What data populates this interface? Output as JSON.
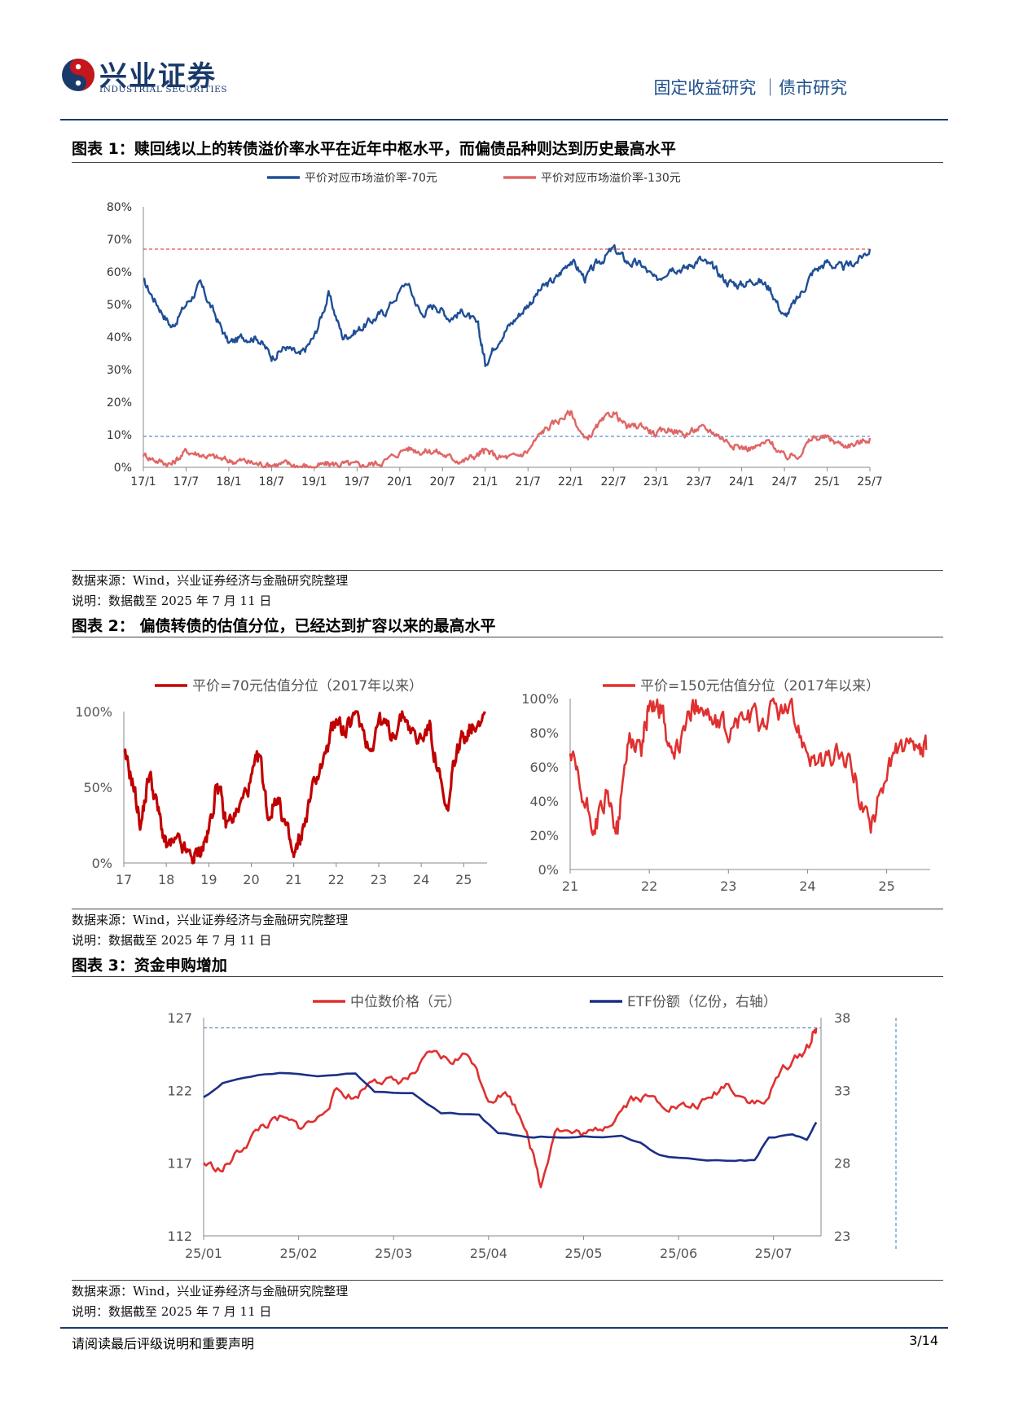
{
  "header": {
    "brand_cn": "兴业证券",
    "brand_en": "INDUSTRIAL SECURITIES",
    "section": "固定收益研究 ｜债市研究",
    "colors": {
      "brand": "#1a3a6b",
      "logo_red": "#c4161c"
    }
  },
  "figure1": {
    "title": "图表 1：赎回线以上的转债溢价率水平在近年中枢水平，而偏债品种则达到历史最高水平",
    "source": "数据来源：Wind，兴业证券经济与金融研究院整理",
    "note": "说明：数据截至 2025 年 7 月 11 日"
  },
  "figure2": {
    "title": "图表 2： 偏债转债的估值分位，已经达到扩容以来的最高水平",
    "source": "数据来源：Wind，兴业证券经济与金融研究院整理",
    "note": "说明：数据截至 2025 年 7 月 11 日"
  },
  "figure3": {
    "title": "图表 3：资金申购增加",
    "source": "数据来源：Wind，兴业证券经济与金融研究院整理",
    "note": "说明：数据截至 2025 年 7 月 11 日"
  },
  "footer": {
    "disclaimer": "请阅读最后评级说明和重要声明",
    "page": "3/14"
  },
  "chart_data": [
    {
      "type": "line",
      "yunit": "%",
      "ylim": [
        0,
        80
      ],
      "yticks": [
        "0%",
        "10%",
        "20%",
        "30%",
        "40%",
        "50%",
        "60%",
        "70%",
        "80%"
      ],
      "x_ticks": [
        "17/1",
        "17/7",
        "18/1",
        "18/7",
        "19/1",
        "19/7",
        "20/1",
        "20/7",
        "21/1",
        "21/7",
        "22/1",
        "22/7",
        "23/1",
        "23/7",
        "24/1",
        "24/7",
        "25/1",
        "25/7"
      ],
      "legend": "top-center",
      "reference_lines": [
        {
          "value": 67,
          "color": "#d9534f"
        },
        {
          "value": 9.5,
          "color": "#5b8fc9"
        }
      ],
      "series": [
        {
          "name": "平价对应市场溢价率-70元",
          "color": "#1f4e96",
          "points": [
            [
              "17/1",
              57
            ],
            [
              "17/3",
              50
            ],
            [
              "17/5",
              43
            ],
            [
              "17/7",
              50
            ],
            [
              "17/9",
              56
            ],
            [
              "17/11",
              47
            ],
            [
              "18/1",
              38
            ],
            [
              "18/3",
              40
            ],
            [
              "18/5",
              40
            ],
            [
              "18/7",
              34
            ],
            [
              "18/9",
              37
            ],
            [
              "18/11",
              34
            ],
            [
              "19/1",
              40
            ],
            [
              "19/3",
              53
            ],
            [
              "19/5",
              40
            ],
            [
              "19/7",
              42
            ],
            [
              "19/9",
              45
            ],
            [
              "19/11",
              48
            ],
            [
              "20/2",
              57
            ],
            [
              "20/4",
              47
            ],
            [
              "20/6",
              50
            ],
            [
              "20/8",
              46
            ],
            [
              "20/10",
              48
            ],
            [
              "20/12",
              43
            ],
            [
              "21/1",
              32
            ],
            [
              "21/3",
              40
            ],
            [
              "21/5",
              45
            ],
            [
              "21/7",
              50
            ],
            [
              "21/9",
              55
            ],
            [
              "21/11",
              58
            ],
            [
              "22/1",
              64
            ],
            [
              "22/3",
              58
            ],
            [
              "22/5",
              63
            ],
            [
              "22/7",
              67
            ],
            [
              "22/9",
              63
            ],
            [
              "22/11",
              62
            ],
            [
              "23/1",
              57
            ],
            [
              "23/3",
              62
            ],
            [
              "23/5",
              61
            ],
            [
              "23/7",
              64
            ],
            [
              "23/9",
              61
            ],
            [
              "23/11",
              57
            ],
            [
              "24/1",
              56
            ],
            [
              "24/3",
              58
            ],
            [
              "24/5",
              55
            ],
            [
              "24/7",
              46
            ],
            [
              "24/9",
              52
            ],
            [
              "24/11",
              60
            ],
            [
              "25/1",
              63
            ],
            [
              "25/3",
              61
            ],
            [
              "25/5",
              63
            ],
            [
              "25/7",
              67
            ]
          ]
        },
        {
          "name": "平价对应市场溢价率-130元",
          "color": "#e06666",
          "points": [
            [
              "17/1",
              4
            ],
            [
              "17/3",
              2
            ],
            [
              "17/5",
              1
            ],
            [
              "17/7",
              5
            ],
            [
              "17/9",
              4
            ],
            [
              "17/11",
              3
            ],
            [
              "18/1",
              2
            ],
            [
              "18/3",
              2
            ],
            [
              "18/5",
              1
            ],
            [
              "18/7",
              1
            ],
            [
              "18/9",
              1
            ],
            [
              "18/11",
              0.5
            ],
            [
              "19/1",
              0
            ],
            [
              "19/3",
              1
            ],
            [
              "19/5",
              1
            ],
            [
              "19/7",
              0.5
            ],
            [
              "19/9",
              1
            ],
            [
              "19/11",
              2
            ],
            [
              "20/2",
              6
            ],
            [
              "20/4",
              5
            ],
            [
              "20/6",
              5
            ],
            [
              "20/8",
              3
            ],
            [
              "20/10",
              2
            ],
            [
              "20/12",
              4
            ],
            [
              "21/1",
              5
            ],
            [
              "21/3",
              3
            ],
            [
              "21/5",
              3
            ],
            [
              "21/7",
              5
            ],
            [
              "21/9",
              11
            ],
            [
              "21/11",
              14
            ],
            [
              "22/1",
              17
            ],
            [
              "22/3",
              8
            ],
            [
              "22/5",
              13
            ],
            [
              "22/7",
              17
            ],
            [
              "22/9",
              12
            ],
            [
              "22/11",
              13
            ],
            [
              "23/1",
              10
            ],
            [
              "23/3",
              12
            ],
            [
              "23/5",
              10
            ],
            [
              "23/7",
              12
            ],
            [
              "23/9",
              11
            ],
            [
              "23/11",
              8
            ],
            [
              "24/1",
              6
            ],
            [
              "24/3",
              6
            ],
            [
              "24/5",
              8
            ],
            [
              "24/7",
              3
            ],
            [
              "24/9",
              4
            ],
            [
              "24/11",
              9
            ],
            [
              "25/1",
              9
            ],
            [
              "25/3",
              7
            ],
            [
              "25/5",
              7
            ],
            [
              "25/7",
              9
            ]
          ]
        }
      ]
    },
    {
      "type": "line",
      "ylim": [
        0,
        100
      ],
      "yticks": [
        "0%",
        "50%",
        "100%"
      ],
      "x_ticks": [
        "17",
        "18",
        "19",
        "20",
        "21",
        "22",
        "23",
        "24",
        "25"
      ],
      "legend": "top-center",
      "series": [
        {
          "name": "平价=70元估值分位（2017年以来）",
          "color": "#c00000",
          "points": [
            [
              2017.0,
              70
            ],
            [
              2017.2,
              55
            ],
            [
              2017.4,
              25
            ],
            [
              2017.6,
              60
            ],
            [
              2017.8,
              35
            ],
            [
              2018.0,
              10
            ],
            [
              2018.3,
              12
            ],
            [
              2018.6,
              2
            ],
            [
              2018.8,
              8
            ],
            [
              2019.0,
              20
            ],
            [
              2019.2,
              55
            ],
            [
              2019.4,
              25
            ],
            [
              2019.7,
              35
            ],
            [
              2020.0,
              55
            ],
            [
              2020.2,
              70
            ],
            [
              2020.4,
              30
            ],
            [
              2020.6,
              45
            ],
            [
              2020.8,
              25
            ],
            [
              2021.0,
              2
            ],
            [
              2021.2,
              20
            ],
            [
              2021.5,
              55
            ],
            [
              2021.8,
              75
            ],
            [
              2022.0,
              98
            ],
            [
              2022.2,
              85
            ],
            [
              2022.5,
              99
            ],
            [
              2022.8,
              75
            ],
            [
              2023.0,
              95
            ],
            [
              2023.3,
              85
            ],
            [
              2023.6,
              98
            ],
            [
              2023.9,
              80
            ],
            [
              2024.2,
              90
            ],
            [
              2024.4,
              60
            ],
            [
              2024.6,
              30
            ],
            [
              2024.8,
              70
            ],
            [
              2025.0,
              85
            ],
            [
              2025.2,
              92
            ],
            [
              2025.5,
              100
            ]
          ]
        }
      ]
    },
    {
      "type": "line",
      "ylim": [
        0,
        100
      ],
      "yticks": [
        "0%",
        "20%",
        "40%",
        "60%",
        "80%",
        "100%"
      ],
      "x_ticks": [
        "21",
        "22",
        "23",
        "24",
        "25"
      ],
      "legend": "top-center",
      "series": [
        {
          "name": "平价=150元估值分位（2017年以来）",
          "color": "#e03030",
          "points": [
            [
              2021.0,
              68
            ],
            [
              2021.15,
              40
            ],
            [
              2021.3,
              25
            ],
            [
              2021.45,
              40
            ],
            [
              2021.6,
              25
            ],
            [
              2021.75,
              80
            ],
            [
              2021.9,
              70
            ],
            [
              2022.0,
              99
            ],
            [
              2022.15,
              95
            ],
            [
              2022.3,
              60
            ],
            [
              2022.5,
              90
            ],
            [
              2022.65,
              100
            ],
            [
              2022.8,
              85
            ],
            [
              2023.0,
              80
            ],
            [
              2023.2,
              90
            ],
            [
              2023.4,
              85
            ],
            [
              2023.6,
              95
            ],
            [
              2023.8,
              90
            ],
            [
              2024.0,
              72
            ],
            [
              2024.2,
              60
            ],
            [
              2024.4,
              68
            ],
            [
              2024.6,
              55
            ],
            [
              2024.8,
              22
            ],
            [
              2025.0,
              60
            ],
            [
              2025.2,
              72
            ],
            [
              2025.4,
              65
            ],
            [
              2025.5,
              70
            ]
          ]
        }
      ]
    },
    {
      "type": "line",
      "dual_axis": true,
      "ylim_left": [
        112,
        127
      ],
      "yticks_left": [
        "112",
        "117",
        "122",
        "127"
      ],
      "ylim_right": [
        23,
        38
      ],
      "yticks_right": [
        "23",
        "28",
        "33",
        "38"
      ],
      "x_ticks": [
        "25/01",
        "25/02",
        "25/03",
        "25/04",
        "25/05",
        "25/06",
        "25/07"
      ],
      "legend": "top-center",
      "reference_lines": [
        {
          "value": 126.3,
          "axis": "left",
          "color": "#5b8fc9"
        }
      ],
      "series": [
        {
          "name": "中位数价格（元）",
          "axis": "left",
          "color": "#e03030",
          "points": [
            [
              0,
              117
            ],
            [
              0.2,
              116.5
            ],
            [
              0.4,
              118
            ],
            [
              0.6,
              119.5
            ],
            [
              0.8,
              120
            ],
            [
              1.0,
              119.5
            ],
            [
              1.2,
              120
            ],
            [
              1.4,
              122
            ],
            [
              1.6,
              121.5
            ],
            [
              1.8,
              123
            ],
            [
              2.0,
              122.5
            ],
            [
              2.2,
              123
            ],
            [
              2.4,
              124.5
            ],
            [
              2.6,
              124
            ],
            [
              2.8,
              124.5
            ],
            [
              3.0,
              121.5
            ],
            [
              3.2,
              121.8
            ],
            [
              3.4,
              119.5
            ],
            [
              3.55,
              115.3
            ],
            [
              3.7,
              119.5
            ],
            [
              3.9,
              119
            ],
            [
              4.1,
              119
            ],
            [
              4.3,
              120
            ],
            [
              4.5,
              121.5
            ],
            [
              4.7,
              121.5
            ],
            [
              4.9,
              121
            ],
            [
              5.1,
              120.8
            ],
            [
              5.3,
              121.2
            ],
            [
              5.5,
              122.5
            ],
            [
              5.7,
              121.5
            ],
            [
              5.9,
              121
            ],
            [
              6.1,
              123.5
            ],
            [
              6.3,
              124.5
            ],
            [
              6.4,
              125.5
            ],
            [
              6.45,
              126.3
            ]
          ]
        },
        {
          "name": "ETF份额（亿份，右轴）",
          "axis": "right",
          "color": "#1b2f86",
          "points": [
            [
              0,
              32.5
            ],
            [
              0.2,
              33.5
            ],
            [
              0.5,
              34
            ],
            [
              0.8,
              34.2
            ],
            [
              1.2,
              34
            ],
            [
              1.6,
              34.2
            ],
            [
              1.8,
              33
            ],
            [
              2.2,
              32.8
            ],
            [
              2.5,
              31.5
            ],
            [
              2.9,
              31.3
            ],
            [
              3.1,
              30
            ],
            [
              3.4,
              29.8
            ],
            [
              3.7,
              29.8
            ],
            [
              4.0,
              29.8
            ],
            [
              4.4,
              29.9
            ],
            [
              4.6,
              29.4
            ],
            [
              4.8,
              28.5
            ],
            [
              5.2,
              28.2
            ],
            [
              5.6,
              28.2
            ],
            [
              5.8,
              28.2
            ],
            [
              5.95,
              29.8
            ],
            [
              6.2,
              29.9
            ],
            [
              6.35,
              29.6
            ],
            [
              6.45,
              30.8
            ]
          ]
        }
      ]
    }
  ]
}
